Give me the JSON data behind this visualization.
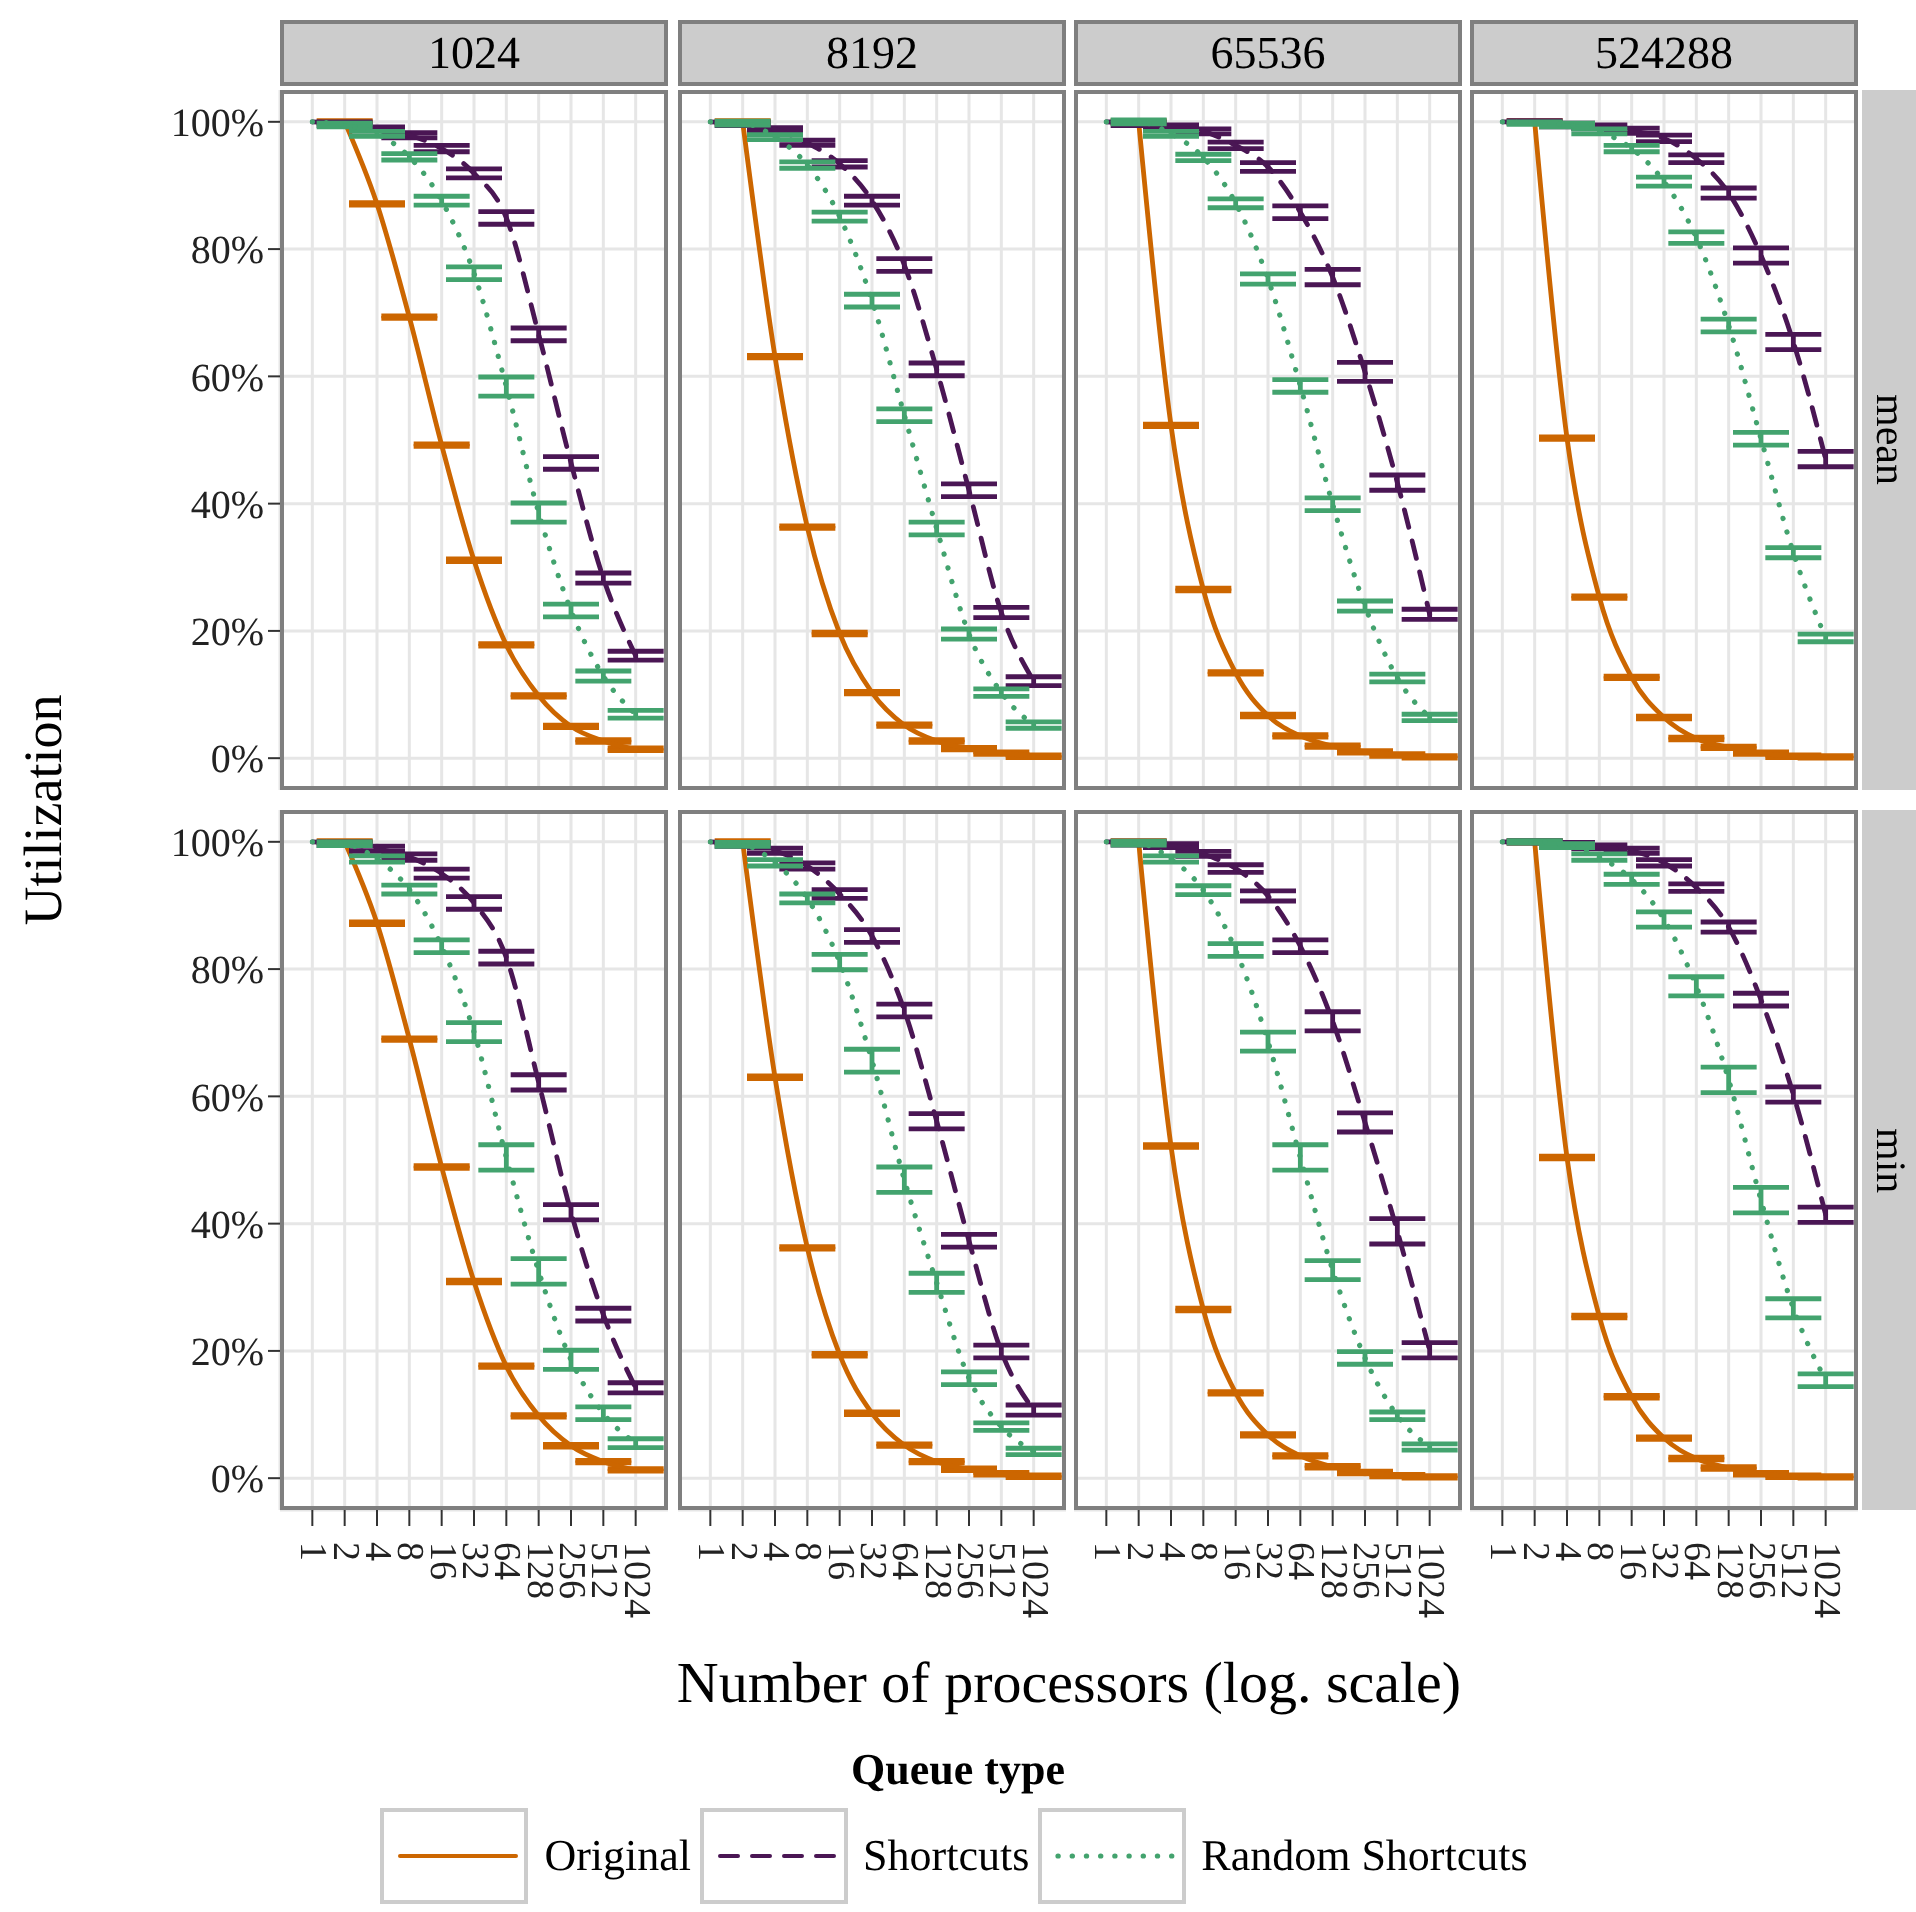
{
  "chart_data": [
    {
      "type": "line",
      "title": "1024",
      "ylabel": "Utilization",
      "legend": "bottom",
      "legend_title": "Queue type",
      "log": "x",
      "grid": true,
      "tick_labels": "y",
      "x": [
        1,
        2,
        4,
        8,
        16,
        32,
        64,
        128,
        256,
        512,
        1024
      ],
      "xlim": [
        0.5,
        2048
      ],
      "xticks": [
        1,
        2,
        4,
        8,
        16,
        32,
        64,
        128,
        256,
        512,
        1024
      ],
      "ylim": [
        -5,
        105
      ],
      "yticks": [
        {
          "value": 0,
          "label": "0%"
        },
        {
          "value": 20,
          "label": "20%"
        },
        {
          "value": 40,
          "label": "40%"
        },
        {
          "value": 60,
          "label": "60%"
        },
        {
          "value": 80,
          "label": "80%"
        },
        {
          "value": 100,
          "label": "100%"
        }
      ],
      "series": [
        {
          "name": "Original",
          "color": "#cc6600",
          "line_style": "solid",
          "values": [
            null,
            100,
            87.1,
            69.3,
            49.2,
            31.1,
            17.8,
            9.8,
            5.0,
            2.7,
            1.4
          ],
          "errors": [
            null,
            0.2,
            0.2,
            0.2,
            0.2,
            0.2,
            0.2,
            0.2,
            0.2,
            0.2,
            0.2
          ]
        },
        {
          "name": "Shortcuts",
          "color": "#4a1654",
          "line_style": "dashed",
          "values": [
            100,
            99.7,
            98.9,
            97.9,
            95.8,
            91.9,
            84.9,
            66.6,
            46.4,
            28.3,
            16.1
          ],
          "errors": [
            0,
            0.3,
            0.3,
            0.4,
            0.5,
            0.7,
            1,
            1,
            1,
            0.8,
            0.7
          ]
        },
        {
          "name": "Random Shortcuts",
          "color": "#43a36e",
          "line_style": "dotted",
          "values": [
            100,
            99.5,
            98.1,
            94.5,
            87.6,
            76.2,
            58.4,
            38.6,
            23.2,
            12.9,
            6.9
          ],
          "errors": [
            0,
            0.3,
            0.4,
            0.5,
            0.7,
            1,
            1.5,
            1.5,
            1,
            0.8,
            0.6
          ]
        }
      ]
    },
    {
      "type": "line",
      "title": "8192",
      "log": "x",
      "grid": true,
      "tick_labels": false,
      "x": [
        1,
        2,
        4,
        8,
        16,
        32,
        64,
        128,
        256,
        512,
        1024
      ],
      "xlim": [
        0.5,
        2048
      ],
      "xticks": [
        1,
        2,
        4,
        8,
        16,
        32,
        64,
        128,
        256,
        512,
        1024
      ],
      "ylim": [
        -5,
        105
      ],
      "yticks": [
        0,
        20,
        40,
        60,
        80,
        100
      ],
      "series": [
        {
          "color": "#cc6600",
          "line_style": "solid",
          "values": [
            null,
            100,
            63.1,
            36.3,
            19.6,
            10.3,
            5.2,
            2.7,
            1.5,
            0.8,
            0.3
          ],
          "errors": [
            null,
            0.2,
            0.2,
            0.2,
            0.2,
            0.2,
            0.2,
            0.2,
            0.2,
            0.2,
            0.2
          ]
        },
        {
          "color": "#4a1654",
          "line_style": "dashed",
          "values": [
            100,
            99.7,
            98.8,
            96.7,
            93.4,
            87.6,
            77.5,
            61.1,
            42.1,
            22.9,
            12.1
          ],
          "errors": [
            0,
            0.3,
            0.3,
            0.4,
            0.5,
            0.7,
            1,
            1,
            1,
            0.8,
            0.7
          ]
        },
        {
          "color": "#43a36e",
          "line_style": "dotted",
          "values": [
            100,
            99.8,
            97.6,
            93.2,
            85.1,
            71.9,
            53.9,
            36.1,
            19.5,
            10.3,
            5.2
          ],
          "errors": [
            0,
            0.3,
            0.4,
            0.5,
            0.7,
            1,
            1,
            1,
            0.8,
            0.6,
            0.5
          ]
        }
      ]
    },
    {
      "type": "line",
      "title": "65536",
      "log": "x",
      "grid": true,
      "tick_labels": false,
      "x": [
        1,
        2,
        4,
        8,
        16,
        32,
        64,
        128,
        256,
        512,
        1024
      ],
      "xlim": [
        0.5,
        2048
      ],
      "xticks": [
        1,
        2,
        4,
        8,
        16,
        32,
        64,
        128,
        256,
        512,
        1024
      ],
      "ylim": [
        -5,
        105
      ],
      "yticks": [
        0,
        20,
        40,
        60,
        80,
        100
      ],
      "series": [
        {
          "color": "#cc6600",
          "line_style": "solid",
          "values": [
            null,
            100,
            52.3,
            26.5,
            13.4,
            6.7,
            3.5,
            1.9,
            1.0,
            0.5,
            0.2
          ],
          "errors": [
            null,
            0.2,
            0.2,
            0.2,
            0.2,
            0.2,
            0.2,
            0.2,
            0.2,
            0.2,
            0.2
          ]
        },
        {
          "color": "#4a1654",
          "line_style": "dashed",
          "values": [
            100,
            99.7,
            99.2,
            98.5,
            96.3,
            92.9,
            85.8,
            75.6,
            60.7,
            43.3,
            22.6
          ],
          "errors": [
            0,
            0.3,
            0.3,
            0.4,
            0.5,
            0.7,
            1,
            1.2,
            1.5,
            1.2,
            0.8
          ]
        },
        {
          "color": "#43a36e",
          "line_style": "dotted",
          "values": [
            100,
            100,
            98.1,
            94.4,
            87.2,
            75.3,
            58.5,
            39.9,
            23.9,
            12.6,
            6.4
          ],
          "errors": [
            0,
            0.3,
            0.4,
            0.5,
            0.7,
            0.8,
            1,
            1,
            0.8,
            0.6,
            0.5
          ]
        }
      ]
    },
    {
      "type": "line",
      "title": "524288",
      "annotations": [
        "mean"
      ],
      "log": "x",
      "grid": true,
      "tick_labels": false,
      "x": [
        1,
        2,
        4,
        8,
        16,
        32,
        64,
        128,
        256,
        512,
        1024
      ],
      "xlim": [
        0.5,
        2048
      ],
      "xticks": [
        1,
        2,
        4,
        8,
        16,
        32,
        64,
        128,
        256,
        512,
        1024
      ],
      "ylim": [
        -5,
        105
      ],
      "yticks": [
        0,
        20,
        40,
        60,
        80,
        100
      ],
      "series": [
        {
          "color": "#cc6600",
          "line_style": "solid",
          "values": [
            null,
            100,
            50.3,
            25.3,
            12.7,
            6.4,
            3.1,
            1.7,
            0.8,
            0.3,
            0.2
          ],
          "errors": [
            null,
            0.2,
            0.2,
            0.2,
            0.2,
            0.2,
            0.2,
            0.2,
            0.2,
            0.2,
            0.2
          ]
        },
        {
          "color": "#4a1654",
          "line_style": "dashed",
          "values": [
            100,
            100,
            99.5,
            99.2,
            98.6,
            97.4,
            94.2,
            88.8,
            79.0,
            65.4,
            47.0
          ],
          "errors": [
            0,
            0.2,
            0.3,
            0.3,
            0.4,
            0.5,
            0.6,
            0.8,
            1.2,
            1.2,
            1.2
          ]
        },
        {
          "color": "#43a36e",
          "line_style": "dotted",
          "values": [
            100,
            99.8,
            99.5,
            98.5,
            95.8,
            90.6,
            81.8,
            68.0,
            50.2,
            32.3,
            18.9
          ],
          "errors": [
            0,
            0.2,
            0.3,
            0.4,
            0.5,
            0.7,
            0.9,
            1,
            1,
            0.8,
            0.6
          ]
        }
      ]
    },
    {
      "type": "line",
      "xlabel": "Number of processors (log. scale)",
      "log": "x",
      "grid": true,
      "x": [
        1,
        2,
        4,
        8,
        16,
        32,
        64,
        128,
        256,
        512,
        1024
      ],
      "xlim": [
        0.5,
        2048
      ],
      "xticks": [
        1,
        2,
        4,
        8,
        16,
        32,
        64,
        128,
        256,
        512,
        1024
      ],
      "ylim": [
        -5,
        105
      ],
      "yticks": [
        {
          "value": 0,
          "label": "0%"
        },
        {
          "value": 20,
          "label": "20%"
        },
        {
          "value": 40,
          "label": "40%"
        },
        {
          "value": 60,
          "label": "60%"
        },
        {
          "value": 80,
          "label": "80%"
        },
        {
          "value": 100,
          "label": "100%"
        }
      ],
      "series": [
        {
          "color": "#cc6600",
          "line_style": "solid",
          "values": [
            null,
            100,
            87.2,
            69.0,
            48.9,
            30.9,
            17.6,
            9.8,
            5.1,
            2.6,
            1.3
          ],
          "errors": [
            null,
            0.2,
            0.2,
            0.2,
            0.2,
            0.2,
            0.2,
            0.2,
            0.2,
            0.2,
            0.2
          ]
        },
        {
          "color": "#4a1654",
          "line_style": "dashed",
          "values": [
            100,
            99.7,
            98.9,
            97.6,
            95.0,
            90.4,
            81.8,
            62.2,
            41.8,
            25.7,
            14.2
          ],
          "errors": [
            0,
            0.3,
            0.4,
            0.5,
            0.7,
            1,
            1,
            1.2,
            1.2,
            1,
            0.8
          ]
        },
        {
          "color": "#43a36e",
          "line_style": "dotted",
          "values": [
            100,
            99.7,
            97.3,
            92.5,
            83.6,
            70.1,
            50.4,
            32.5,
            18.6,
            10.2,
            5.5
          ],
          "errors": [
            0,
            0.3,
            0.5,
            0.7,
            1,
            1.5,
            2,
            2,
            1.5,
            1,
            0.7
          ]
        }
      ]
    },
    {
      "type": "line",
      "log": "x",
      "grid": true,
      "tick_labels": "x",
      "x": [
        1,
        2,
        4,
        8,
        16,
        32,
        64,
        128,
        256,
        512,
        1024
      ],
      "xlim": [
        0.5,
        2048
      ],
      "xticks": [
        1,
        2,
        4,
        8,
        16,
        32,
        64,
        128,
        256,
        512,
        1024
      ],
      "ylim": [
        -5,
        105
      ],
      "yticks": [
        0,
        20,
        40,
        60,
        80,
        100
      ],
      "series": [
        {
          "color": "#cc6600",
          "line_style": "solid",
          "values": [
            null,
            100,
            63.0,
            36.2,
            19.4,
            10.2,
            5.2,
            2.6,
            1.4,
            0.7,
            0.3
          ],
          "errors": [
            null,
            0.2,
            0.2,
            0.2,
            0.2,
            0.2,
            0.2,
            0.2,
            0.2,
            0.2,
            0.2
          ]
        },
        {
          "color": "#4a1654",
          "line_style": "dashed",
          "values": [
            100,
            99.6,
            98.6,
            96.2,
            91.8,
            85.2,
            73.5,
            56.1,
            37.3,
            19.9,
            10.7
          ],
          "errors": [
            0,
            0.3,
            0.4,
            0.5,
            0.7,
            1,
            1,
            1.2,
            1,
            1,
            0.8
          ]
        },
        {
          "color": "#43a36e",
          "line_style": "dotted",
          "values": [
            100,
            99.6,
            96.7,
            91.1,
            81.1,
            65.6,
            46.9,
            30.7,
            15.7,
            8.1,
            4.2
          ],
          "errors": [
            0,
            0.3,
            0.5,
            0.7,
            1.2,
            1.8,
            2,
            1.5,
            1,
            0.6,
            0.5
          ]
        }
      ]
    },
    {
      "type": "line",
      "log": "x",
      "grid": true,
      "tick_labels": "x",
      "x": [
        1,
        2,
        4,
        8,
        16,
        32,
        64,
        128,
        256,
        512,
        1024
      ],
      "xlim": [
        0.5,
        2048
      ],
      "xticks": [
        1,
        2,
        4,
        8,
        16,
        32,
        64,
        128,
        256,
        512,
        1024
      ],
      "ylim": [
        -5,
        105
      ],
      "yticks": [
        0,
        20,
        40,
        60,
        80,
        100
      ],
      "series": [
        {
          "color": "#cc6600",
          "line_style": "solid",
          "values": [
            null,
            100,
            52.2,
            26.5,
            13.4,
            6.8,
            3.5,
            1.8,
            0.9,
            0.4,
            0.2
          ],
          "errors": [
            null,
            0.2,
            0.2,
            0.2,
            0.2,
            0.2,
            0.2,
            0.2,
            0.2,
            0.2,
            0.2
          ]
        },
        {
          "color": "#4a1654",
          "line_style": "dashed",
          "values": [
            100,
            99.8,
            99.4,
            98.1,
            95.8,
            91.5,
            83.6,
            71.8,
            55.9,
            38.8,
            20.1
          ],
          "errors": [
            0,
            0.3,
            0.3,
            0.4,
            0.6,
            0.8,
            1,
            1.5,
            1.5,
            2,
            1.2
          ]
        },
        {
          "color": "#43a36e",
          "line_style": "dotted",
          "values": [
            100,
            99.8,
            97.3,
            92.4,
            83.0,
            68.6,
            50.4,
            32.7,
            18.9,
            9.8,
            4.9
          ],
          "errors": [
            0,
            0.3,
            0.5,
            0.7,
            1,
            1.5,
            2,
            1.5,
            1,
            0.6,
            0.5
          ]
        }
      ]
    },
    {
      "type": "line",
      "annotations": [
        "min"
      ],
      "log": "x",
      "grid": true,
      "tick_labels": "x",
      "x": [
        1,
        2,
        4,
        8,
        16,
        32,
        64,
        128,
        256,
        512,
        1024
      ],
      "xlim": [
        0.5,
        2048
      ],
      "xticks": [
        1,
        2,
        4,
        8,
        16,
        32,
        64,
        128,
        256,
        512,
        1024
      ],
      "ylim": [
        -5,
        105
      ],
      "yticks": [
        0,
        20,
        40,
        60,
        80,
        100
      ],
      "series": [
        {
          "color": "#cc6600",
          "line_style": "solid",
          "values": [
            null,
            100,
            50.4,
            25.4,
            12.8,
            6.3,
            3.1,
            1.6,
            0.7,
            0.3,
            0.2
          ],
          "errors": [
            null,
            0.2,
            0.2,
            0.2,
            0.2,
            0.2,
            0.2,
            0.2,
            0.2,
            0.2,
            0.2
          ]
        },
        {
          "color": "#4a1654",
          "line_style": "dashed",
          "values": [
            100,
            100,
            99.6,
            99.2,
            98.6,
            96.7,
            92.8,
            86.6,
            75.2,
            60.3,
            41.4
          ],
          "errors": [
            0,
            0.2,
            0.3,
            0.3,
            0.4,
            0.5,
            0.6,
            0.8,
            1,
            1.2,
            1.2
          ]
        },
        {
          "color": "#43a36e",
          "line_style": "dotted",
          "values": [
            100,
            100,
            99.4,
            97.6,
            94.1,
            87.8,
            77.3,
            62.6,
            43.7,
            26.7,
            15.4
          ],
          "errors": [
            0,
            0.2,
            0.3,
            0.5,
            0.8,
            1.2,
            1.5,
            2,
            2,
            1.5,
            1
          ]
        }
      ]
    }
  ]
}
